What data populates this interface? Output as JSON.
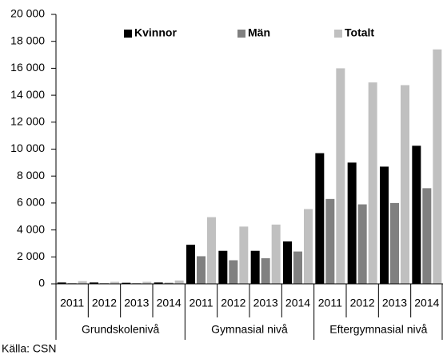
{
  "chart_data": {
    "type": "bar",
    "categories": [
      "2011",
      "2012",
      "2013",
      "2014",
      "2011",
      "2012",
      "2013",
      "2014",
      "2011",
      "2012",
      "2013",
      "2014"
    ],
    "groups": [
      "Grundskolenivå",
      "Gymnasial nivå",
      "Eftergymnasial nivå"
    ],
    "series": [
      {
        "name": "Kvinnor",
        "color": "#000000",
        "values": [
          100,
          100,
          80,
          100,
          2900,
          2450,
          2450,
          3150,
          9700,
          9000,
          8700,
          10250
        ]
      },
      {
        "name": "Män",
        "color": "#808080",
        "values": [
          50,
          50,
          50,
          80,
          2050,
          1750,
          1900,
          2400,
          6300,
          5900,
          6000,
          7100
        ]
      },
      {
        "name": "Totalt",
        "color": "#c0c0c0",
        "values": [
          200,
          150,
          150,
          250,
          4950,
          4250,
          4400,
          5550,
          16000,
          14950,
          14750,
          17400
        ]
      }
    ],
    "ylim": [
      0,
      20000
    ],
    "yticks": [
      0,
      {
        "value": 2000,
        "label": "2 000"
      },
      {
        "value": 4000,
        "label": "4 000"
      },
      {
        "value": 6000,
        "label": "6 000"
      },
      {
        "value": 8000,
        "label": "8 000"
      },
      {
        "value": 10000,
        "label": "10 000"
      },
      {
        "value": 12000,
        "label": "12 000"
      },
      {
        "value": 14000,
        "label": "14 000"
      },
      {
        "value": 16000,
        "label": "16 000"
      },
      {
        "value": 18000,
        "label": "18 000"
      },
      {
        "value": 20000,
        "label": "20 000"
      }
    ],
    "source": "Källa: CSN"
  }
}
